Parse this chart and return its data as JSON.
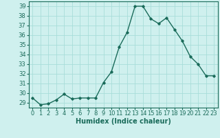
{
  "x": [
    0,
    1,
    2,
    3,
    4,
    5,
    6,
    7,
    8,
    9,
    10,
    11,
    12,
    13,
    14,
    15,
    16,
    17,
    18,
    19,
    20,
    21,
    22,
    23
  ],
  "y": [
    29.5,
    28.8,
    28.9,
    29.3,
    29.9,
    29.4,
    29.5,
    29.5,
    29.5,
    31.1,
    32.2,
    34.8,
    36.3,
    39.0,
    39.0,
    37.7,
    37.2,
    37.8,
    36.6,
    35.4,
    33.8,
    33.0,
    31.8,
    31.8
  ],
  "line_color": "#1a6b5a",
  "marker": "D",
  "markersize": 1.8,
  "linewidth": 1.0,
  "xlabel": "Humidex (Indice chaleur)",
  "bg_color": "#cff0ee",
  "grid_color": "#a8ddd9",
  "xlim": [
    -0.5,
    23.5
  ],
  "ylim": [
    28.5,
    39.5
  ],
  "yticks": [
    29,
    30,
    31,
    32,
    33,
    34,
    35,
    36,
    37,
    38,
    39
  ],
  "xticks": [
    0,
    1,
    2,
    3,
    4,
    5,
    6,
    7,
    8,
    9,
    10,
    11,
    12,
    13,
    14,
    15,
    16,
    17,
    18,
    19,
    20,
    21,
    22,
    23
  ],
  "tick_color": "#1a6b5a",
  "xlabel_fontsize": 7,
  "tick_fontsize": 6,
  "spine_color": "#1a6b5a"
}
